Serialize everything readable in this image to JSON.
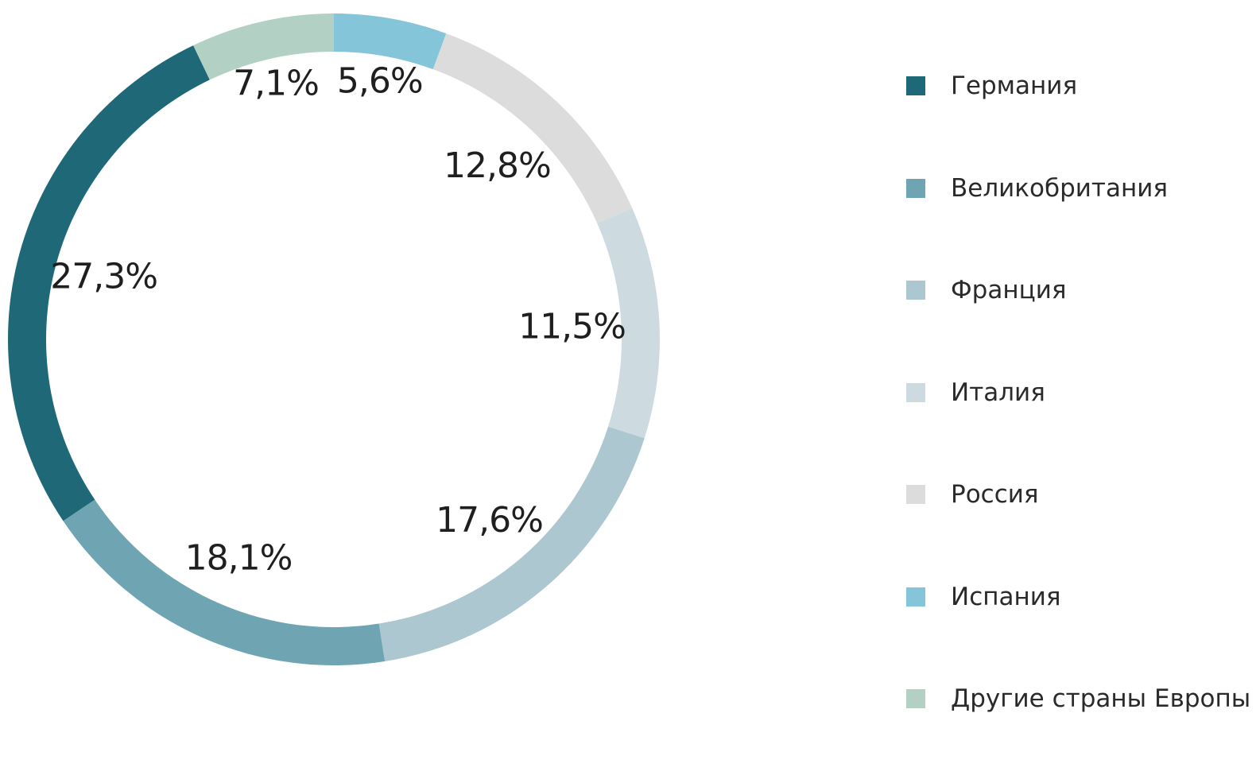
{
  "chart_data": {
    "type": "pie",
    "style": "donut",
    "title": "",
    "legend_position": "right",
    "slices": [
      {
        "name": "Германия",
        "value": 27.3,
        "label": "27,3%",
        "color": "#1e6878"
      },
      {
        "name": "Великобритания",
        "value": 18.1,
        "label": "18,1%",
        "color": "#6fa5b3"
      },
      {
        "name": "Франция",
        "value": 17.6,
        "label": "17,6%",
        "color": "#adc7d1"
      },
      {
        "name": "Италия",
        "value": 11.5,
        "label": "11,5%",
        "color": "#cddbe1"
      },
      {
        "name": "Россия",
        "value": 12.8,
        "label": "12,8%",
        "color": "#dcdcdc"
      },
      {
        "name": "Испания",
        "value": 5.6,
        "label": "5,6%",
        "color": "#84c5d9"
      },
      {
        "name": "Другие страны Европы",
        "value": 7.1,
        "label": "7,1%",
        "color": "#b2d0c3"
      }
    ]
  }
}
